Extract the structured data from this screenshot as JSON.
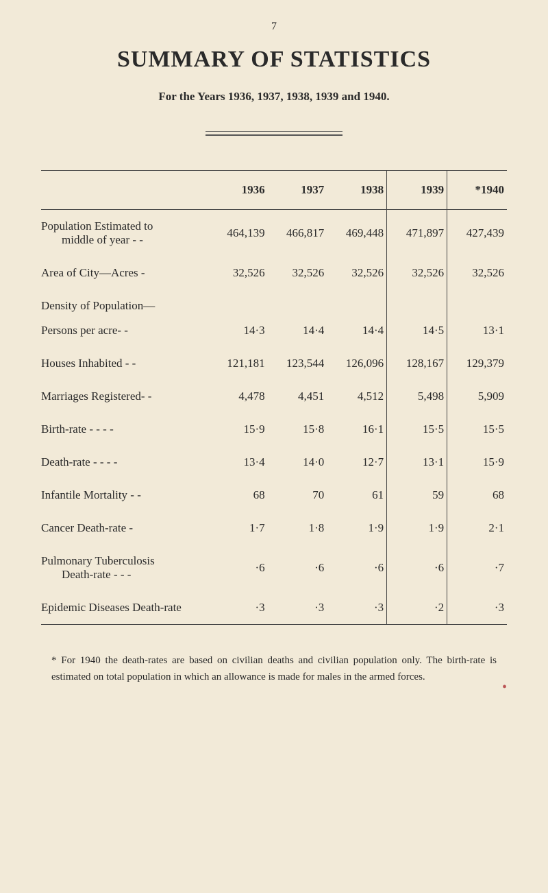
{
  "page_number": "7",
  "title": "SUMMARY OF STATISTICS",
  "subtitle": "For the Years 1936, 1937, 1938, 1939 and 1940.",
  "table": {
    "columns": [
      "",
      "1936",
      "1937",
      "1938",
      "1939",
      "*1940"
    ],
    "rows": [
      {
        "label_line1": "Population Estimated to",
        "label_line2": "middle of year -   -",
        "values": [
          "464,139",
          "466,817",
          "469,448",
          "471,897",
          "427,439"
        ]
      },
      {
        "label": "Area of City—Acres     -",
        "values": [
          "32,526",
          "32,526",
          "32,526",
          "32,526",
          "32,526"
        ]
      },
      {
        "section": "Density of Population—"
      },
      {
        "label": "Persons per acre-   -",
        "indent": true,
        "values": [
          "14·3",
          "14·4",
          "14·4",
          "14·5",
          "13·1"
        ]
      },
      {
        "label": "Houses Inhabited   -   -",
        "values": [
          "121,181",
          "123,544",
          "126,096",
          "128,167",
          "129,379"
        ]
      },
      {
        "label": "Marriages Registered-   -",
        "values": [
          "4,478",
          "4,451",
          "4,512",
          "5,498",
          "5,909"
        ]
      },
      {
        "label": "Birth-rate -   -   -   -",
        "values": [
          "15·9",
          "15·8",
          "16·1",
          "15·5",
          "15·5"
        ]
      },
      {
        "label": "Death-rate -   -   -   -",
        "values": [
          "13·4",
          "14·0",
          "12·7",
          "13·1",
          "15·9"
        ]
      },
      {
        "label": "Infantile Mortality  -   -",
        "values": [
          "68",
          "70",
          "61",
          "59",
          "68"
        ]
      },
      {
        "label": "Cancer Death-rate     -",
        "values": [
          "1·7",
          "1·8",
          "1·9",
          "1·9",
          "2·1"
        ]
      },
      {
        "label_line1": "Pulmonary Tuberculosis",
        "label_line2": "Death-rate -   -   -",
        "values": [
          "·6",
          "·6",
          "·6",
          "·6",
          "·7"
        ]
      },
      {
        "label": "Epidemic Diseases Death-rate",
        "values": [
          "·3",
          "·3",
          "·3",
          "·2",
          "·3"
        ]
      }
    ]
  },
  "footnote": "* For 1940 the death-rates are based on civilian deaths and civilian population only. The birth-rate is estimated on total population in which an allowance is made for males in the armed forces.",
  "background_color": "#f2ead8",
  "text_color": "#2a2a2a"
}
